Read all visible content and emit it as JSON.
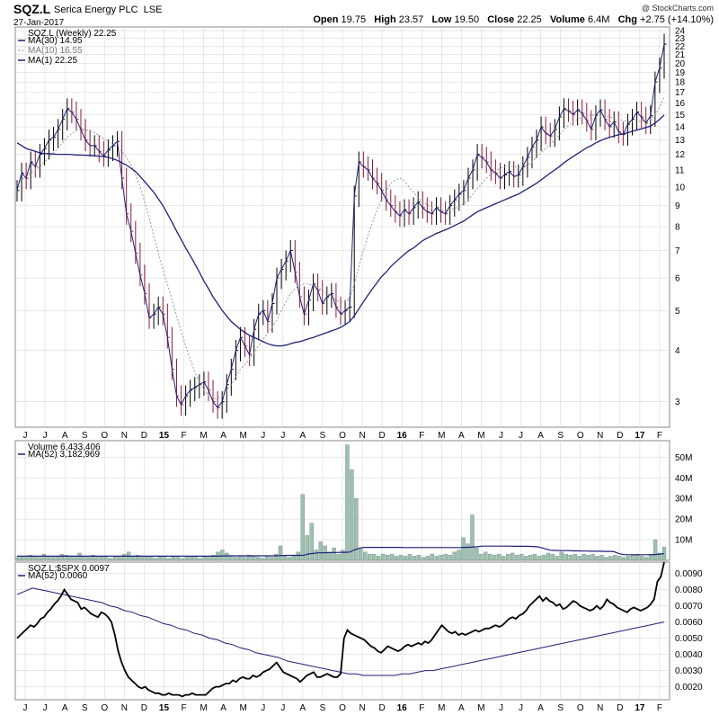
{
  "header": {
    "ticker": "SQZ.L",
    "company": "Serica Energy PLC",
    "exchange": "LSE",
    "date": "27-Jan-2017",
    "credit": "@ StockCharts.com",
    "open_label": "Open",
    "open": "19.75",
    "high_label": "High",
    "high": "23.57",
    "low_label": "Low",
    "low": "19.50",
    "close_label": "Close",
    "close": "22.25",
    "volume_label": "Volume",
    "volume": "6.4M",
    "chg_label": "Chg",
    "chg": "+2.75 (+14.10%)"
  },
  "colors": {
    "up": "#000000",
    "down": "#8b1a3a",
    "ma30": "#1f1f7a",
    "ma10": "#9a9a9a",
    "volume_bar": "#9fbfb0",
    "volume_bar_edge": "#6d8f80",
    "ratio": "#000000",
    "ratio_ma": "#1f1f7a",
    "grid": "#d9d9d9"
  },
  "chart_data": [
    {
      "type": "line",
      "panel": "price",
      "title": "SQZ.L (Weekly) 22.25",
      "yscale": "log",
      "ylim": [
        2.6,
        24.5
      ],
      "yticks": [
        3,
        4,
        5,
        6,
        7,
        8,
        9,
        10,
        11,
        12,
        13,
        14,
        15,
        16,
        17,
        18,
        19,
        20,
        21,
        22,
        23,
        24
      ],
      "xticks": [
        "J",
        "J",
        "A",
        "S",
        "O",
        "N",
        "D",
        "15",
        "F",
        "M",
        "A",
        "M",
        "J",
        "J",
        "A",
        "S",
        "O",
        "N",
        "D",
        "16",
        "F",
        "M",
        "A",
        "M",
        "J",
        "J",
        "A",
        "S",
        "O",
        "N",
        "D",
        "17",
        "F"
      ],
      "legend": [
        {
          "name": "SQZ.L (Weekly) 22.25"
        },
        {
          "name": "MA(30) 14.95"
        },
        {
          "name": "MA(10) 16.55"
        },
        {
          "name": "MA(1) 22.25"
        }
      ],
      "close": [
        9.8,
        10.8,
        10.5,
        11.5,
        11.2,
        12.0,
        12.4,
        13.0,
        13.2,
        13.8,
        14.6,
        15.5,
        15.2,
        14.6,
        13.8,
        13.0,
        12.6,
        12.6,
        12.2,
        11.9,
        12.3,
        12.6,
        12.9,
        10.5,
        8.6,
        7.8,
        6.9,
        6.1,
        5.5,
        4.8,
        4.9,
        5.1,
        4.9,
        4.3,
        3.6,
        3.1,
        2.95,
        3.1,
        3.2,
        3.25,
        3.3,
        3.35,
        3.2,
        3.0,
        2.9,
        3.0,
        3.3,
        3.6,
        4.0,
        4.3,
        4.1,
        3.9,
        4.5,
        4.9,
        5.0,
        4.7,
        5.2,
        6.0,
        6.3,
        6.6,
        7.0,
        6.2,
        5.4,
        4.9,
        5.3,
        5.8,
        5.6,
        5.2,
        5.4,
        5.5,
        5.1,
        4.9,
        5.0,
        5.1,
        9.5,
        11.5,
        11.2,
        11.0,
        10.5,
        10.2,
        9.8,
        9.3,
        9.0,
        8.7,
        8.5,
        8.8,
        8.6,
        8.9,
        9.2,
        8.9,
        8.7,
        8.6,
        8.9,
        8.7,
        8.6,
        9.0,
        9.3,
        9.6,
        9.8,
        10.5,
        11.0,
        12.0,
        11.8,
        11.5,
        11.0,
        10.8,
        10.5,
        10.7,
        10.9,
        10.6,
        10.7,
        11.2,
        11.8,
        12.5,
        13.0,
        14.0,
        13.5,
        13.3,
        13.8,
        14.8,
        15.5,
        15.3,
        15.0,
        15.4,
        15.1,
        14.5,
        13.8,
        14.9,
        15.4,
        14.6,
        14.0,
        14.4,
        13.6,
        13.4,
        14.2,
        14.6,
        15.2,
        14.8,
        14.3,
        14.9,
        18.0,
        19.5,
        22.25
      ],
      "series": [
        {
          "name": "MA(30) 14.95",
          "values": [
            12.8,
            12.6,
            12.4,
            12.3,
            12.2,
            12.1,
            12.05,
            12.05,
            12.02,
            12.0,
            12.0,
            12.0,
            11.98,
            11.96,
            11.95,
            11.94,
            11.93,
            11.9,
            11.88,
            11.85,
            11.8,
            11.7,
            11.6,
            11.45,
            11.3,
            11.1,
            10.9,
            10.6,
            10.3,
            10.0,
            9.7,
            9.35,
            9.0,
            8.6,
            8.2,
            7.8,
            7.45,
            7.1,
            6.8,
            6.5,
            6.2,
            5.9,
            5.65,
            5.4,
            5.2,
            5.0,
            4.85,
            4.7,
            4.6,
            4.5,
            4.42,
            4.35,
            4.3,
            4.25,
            4.2,
            4.15,
            4.12,
            4.1,
            4.1,
            4.12,
            4.15,
            4.18,
            4.2,
            4.23,
            4.27,
            4.3,
            4.34,
            4.38,
            4.42,
            4.46,
            4.5,
            4.55,
            4.62,
            4.7,
            4.85,
            5.05,
            5.25,
            5.45,
            5.65,
            5.85,
            6.05,
            6.2,
            6.4,
            6.55,
            6.7,
            6.85,
            7.0,
            7.1,
            7.25,
            7.4,
            7.5,
            7.6,
            7.7,
            7.78,
            7.86,
            7.95,
            8.05,
            8.15,
            8.25,
            8.4,
            8.55,
            8.7,
            8.8,
            8.9,
            9.0,
            9.1,
            9.2,
            9.3,
            9.4,
            9.5,
            9.6,
            9.75,
            9.9,
            10.05,
            10.2,
            10.4,
            10.6,
            10.8,
            11.0,
            11.2,
            11.45,
            11.65,
            11.85,
            12.05,
            12.25,
            12.45,
            12.6,
            12.8,
            12.95,
            13.1,
            13.2,
            13.3,
            13.4,
            13.45,
            13.55,
            13.65,
            13.75,
            13.85,
            13.95,
            14.05,
            14.3,
            14.6,
            14.95
          ]
        },
        {
          "name": "MA(10) 16.55",
          "values": [
            10.2,
            10.4,
            10.6,
            10.8,
            11.0,
            11.2,
            11.5,
            11.8,
            12.1,
            12.4,
            12.8,
            13.2,
            13.5,
            13.7,
            13.8,
            13.75,
            13.7,
            13.55,
            13.35,
            13.1,
            12.9,
            12.7,
            12.5,
            12.2,
            11.8,
            11.3,
            10.7,
            10.0,
            9.2,
            8.4,
            7.6,
            6.9,
            6.3,
            5.8,
            5.3,
            4.85,
            4.45,
            4.1,
            3.8,
            3.55,
            3.35,
            3.2,
            3.1,
            3.05,
            3.05,
            3.1,
            3.2,
            3.3,
            3.45,
            3.6,
            3.7,
            3.8,
            3.95,
            4.1,
            4.25,
            4.4,
            4.55,
            4.75,
            5.0,
            5.25,
            5.5,
            5.65,
            5.75,
            5.8,
            5.8,
            5.75,
            5.7,
            5.6,
            5.5,
            5.4,
            5.3,
            5.25,
            5.25,
            5.35,
            5.8,
            6.4,
            7.0,
            7.6,
            8.2,
            8.8,
            9.3,
            9.8,
            10.2,
            10.4,
            10.5,
            10.35,
            10.0,
            9.7,
            9.4,
            9.2,
            9.05,
            8.9,
            8.85,
            8.8,
            8.75,
            8.8,
            8.85,
            8.95,
            9.1,
            9.3,
            9.6,
            9.9,
            10.2,
            10.5,
            10.75,
            10.95,
            11.1,
            11.2,
            11.25,
            11.2,
            11.15,
            11.2,
            11.3,
            11.5,
            11.8,
            12.1,
            12.4,
            12.7,
            13.0,
            13.4,
            13.8,
            14.1,
            14.4,
            14.6,
            14.8,
            14.9,
            14.95,
            14.95,
            14.9,
            14.85,
            14.8,
            14.7,
            14.6,
            14.5,
            14.45,
            14.4,
            14.4,
            14.45,
            14.5,
            14.6,
            15.0,
            15.6,
            16.55
          ]
        }
      ]
    },
    {
      "type": "bar",
      "panel": "volume",
      "title": "Volume 6,433,406",
      "ylim": [
        0,
        58
      ],
      "yticks": [
        "10M",
        "20M",
        "30M",
        "40M",
        "50M"
      ],
      "ytick_values": [
        10,
        20,
        30,
        40,
        50
      ],
      "legend": [
        {
          "name": "Volume 6,433,406"
        },
        {
          "name": "MA(52) 3,182,969"
        }
      ],
      "values": [
        1.5,
        2,
        1.5,
        2.5,
        2,
        1.5,
        3,
        2,
        1.5,
        2,
        3,
        2.5,
        2,
        1.5,
        3.5,
        2,
        1.5,
        2.5,
        1.5,
        2,
        1.5,
        1,
        2,
        1.5,
        3,
        4,
        2,
        2.5,
        1.5,
        2,
        1.5,
        1,
        2,
        1.5,
        1,
        2,
        1.5,
        1,
        1.5,
        2,
        1.5,
        1,
        2,
        1.5,
        2.5,
        4,
        5,
        3.5,
        2,
        1.5,
        2,
        1.5,
        2.5,
        2,
        1.5,
        1,
        2,
        1.5,
        3,
        7,
        2,
        1.5,
        2,
        4,
        32,
        12,
        18,
        5,
        9,
        7,
        4,
        6,
        3,
        5,
        56,
        44,
        30,
        6,
        4,
        3,
        3,
        2,
        3,
        2.5,
        3,
        2,
        2.5,
        2,
        3,
        2,
        2.5,
        1.5,
        2,
        3,
        2,
        2.5,
        3,
        2.5,
        4,
        5,
        11,
        8,
        22,
        6,
        3,
        4,
        3,
        2.5,
        3,
        2,
        3,
        3.5,
        2.5,
        3,
        2,
        2.5,
        3,
        2,
        2.5,
        3.5,
        3,
        2,
        4,
        3,
        2.5,
        3,
        2,
        3,
        2.5,
        3,
        2,
        2.5,
        1.5,
        2,
        2.5,
        2,
        1.5,
        2,
        2.5,
        3,
        2,
        1.5,
        3,
        10,
        3.5,
        6.4
      ],
      "series": [
        {
          "name": "MA(52) 3,182,969",
          "values": [
            2.0,
            2.0,
            2.0,
            2.0,
            2.0,
            2.0,
            2.0,
            2.0,
            2.0,
            2.0,
            2.0,
            2.0,
            2.0,
            2.0,
            2.0,
            2.0,
            2.0,
            2.0,
            2.0,
            2.0,
            2.0,
            2.0,
            2.0,
            2.0,
            2.0,
            2.0,
            2.0,
            2.0,
            2.0,
            2.0,
            2.0,
            2.0,
            2.0,
            2.0,
            2.0,
            2.0,
            2.0,
            2.0,
            2.0,
            2.0,
            2.0,
            2.0,
            2.0,
            2.0,
            2.0,
            2.1,
            2.2,
            2.2,
            2.2,
            2.2,
            2.2,
            2.2,
            2.2,
            2.2,
            2.2,
            2.2,
            2.2,
            2.2,
            2.3,
            2.4,
            2.4,
            2.4,
            2.4,
            2.5,
            3.1,
            3.3,
            3.6,
            3.6,
            3.7,
            3.8,
            3.8,
            3.9,
            3.9,
            4.0,
            5.0,
            5.8,
            6.3,
            6.3,
            6.3,
            6.3,
            6.3,
            6.3,
            6.3,
            6.3,
            6.3,
            6.2,
            6.2,
            6.2,
            6.2,
            6.2,
            6.2,
            6.2,
            6.2,
            6.2,
            6.2,
            6.2,
            6.2,
            6.2,
            6.3,
            6.3,
            6.5,
            6.6,
            6.9,
            6.9,
            6.9,
            6.9,
            6.9,
            6.9,
            6.9,
            6.8,
            6.8,
            6.8,
            6.8,
            6.7,
            6.6,
            6.2,
            5.5,
            4.9,
            4.8,
            4.7,
            4.7,
            4.7,
            4.6,
            4.6,
            4.5,
            4.5,
            4.4,
            4.4,
            4.4,
            4.3,
            4.3,
            4.2,
            3.3,
            2.8,
            2.7,
            2.7,
            2.7,
            2.7,
            2.7,
            2.7,
            2.8,
            3.0,
            3.2
          ]
        }
      ]
    },
    {
      "type": "line",
      "panel": "ratio",
      "title": "SQZ.L:$SPX 0.0097",
      "ylim": [
        0.0012,
        0.0097
      ],
      "yticks": [
        "0.0020",
        "0.0030",
        "0.0040",
        "0.0050",
        "0.0060",
        "0.0070",
        "0.0080",
        "0.0090"
      ],
      "ytick_values": [
        0.002,
        0.003,
        0.004,
        0.005,
        0.006,
        0.007,
        0.008,
        0.009
      ],
      "legend": [
        {
          "name": "SQZ.L:$SPX 0.0097"
        },
        {
          "name": "MA(52) 0.0060"
        }
      ],
      "values": [
        0.005,
        0.0052,
        0.0054,
        0.0056,
        0.0058,
        0.0057,
        0.0059,
        0.0062,
        0.0063,
        0.0066,
        0.0068,
        0.0071,
        0.0073,
        0.0076,
        0.008,
        0.0077,
        0.0074,
        0.0073,
        0.0072,
        0.0068,
        0.0069,
        0.0067,
        0.0065,
        0.0064,
        0.0063,
        0.0066,
        0.0065,
        0.0063,
        0.006,
        0.0052,
        0.0042,
        0.0035,
        0.003,
        0.0026,
        0.0024,
        0.0022,
        0.002,
        0.0019,
        0.002,
        0.0018,
        0.0017,
        0.0016,
        0.0016,
        0.0015,
        0.0015,
        0.0016,
        0.0015,
        0.0015,
        0.0015,
        0.0014,
        0.0015,
        0.0015,
        0.0016,
        0.0015,
        0.0015,
        0.0015,
        0.0015,
        0.0017,
        0.0019,
        0.002,
        0.002,
        0.0021,
        0.0022,
        0.0022,
        0.0024,
        0.0023,
        0.0025,
        0.0026,
        0.0025,
        0.0025,
        0.0027,
        0.0026,
        0.0027,
        0.0029,
        0.003,
        0.0031,
        0.0033,
        0.0035,
        0.0032,
        0.0029,
        0.0028,
        0.0027,
        0.0026,
        0.0025,
        0.0023,
        0.0025,
        0.0027,
        0.0028,
        0.0029,
        0.0026,
        0.0026,
        0.0027,
        0.0028,
        0.0027,
        0.0026,
        0.0026,
        0.0028,
        0.005,
        0.0055,
        0.0053,
        0.0052,
        0.0051,
        0.005,
        0.0049,
        0.0047,
        0.0045,
        0.0044,
        0.0042,
        0.0041,
        0.0043,
        0.0045,
        0.0044,
        0.0043,
        0.0042,
        0.0043,
        0.0045,
        0.0046,
        0.0045,
        0.0046,
        0.0047,
        0.0046,
        0.0048,
        0.0047,
        0.0049,
        0.0052,
        0.0055,
        0.0058,
        0.0056,
        0.0054,
        0.0053,
        0.0054,
        0.0052,
        0.0053,
        0.0052,
        0.0053,
        0.0054,
        0.0055,
        0.0054,
        0.0055,
        0.0056,
        0.0056,
        0.0057,
        0.0058,
        0.0057,
        0.0058,
        0.006,
        0.0062,
        0.0063,
        0.0062,
        0.0064,
        0.0065,
        0.0067,
        0.007,
        0.0072,
        0.0074,
        0.0076,
        0.0073,
        0.0075,
        0.0073,
        0.0072,
        0.007,
        0.0071,
        0.0068,
        0.0069,
        0.0071,
        0.0073,
        0.0072,
        0.007,
        0.0069,
        0.0068,
        0.0067,
        0.0068,
        0.007,
        0.0068,
        0.007,
        0.0074,
        0.0072,
        0.0071,
        0.0069,
        0.0068,
        0.0067,
        0.0066,
        0.0068,
        0.0069,
        0.0068,
        0.0067,
        0.0068,
        0.0069,
        0.0071,
        0.0074,
        0.0085,
        0.0088,
        0.0097
      ],
      "series": [
        {
          "name": "MA(52) 0.0060",
          "values": [
            0.0077,
            0.0079,
            0.0081,
            0.008,
            0.0079,
            0.0078,
            0.0077,
            0.0076,
            0.0075,
            0.0074,
            0.0073,
            0.0072,
            0.007,
            0.0069,
            0.0067,
            0.0066,
            0.0064,
            0.0063,
            0.0061,
            0.0059,
            0.0058,
            0.0056,
            0.0055,
            0.0053,
            0.0052,
            0.005,
            0.0049,
            0.0047,
            0.0046,
            0.0044,
            0.0043,
            0.0041,
            0.004,
            0.0039,
            0.0038,
            0.0036,
            0.0035,
            0.0034,
            0.0033,
            0.0032,
            0.0031,
            0.003,
            0.0029,
            0.0028,
            0.0028,
            0.0027,
            0.0027,
            0.0027,
            0.0027,
            0.0027,
            0.0028,
            0.0028,
            0.0029,
            0.003,
            0.003,
            0.0031,
            0.0032,
            0.0033,
            0.0034,
            0.0035,
            0.0036,
            0.0037,
            0.0038,
            0.0039,
            0.004,
            0.0041,
            0.0042,
            0.0043,
            0.0044,
            0.0045,
            0.0046,
            0.0047,
            0.0048,
            0.0049,
            0.005,
            0.0051,
            0.0052,
            0.0053,
            0.0054,
            0.0055,
            0.0056,
            0.0057,
            0.0058,
            0.0059,
            0.006
          ]
        }
      ]
    }
  ],
  "volume_panel": {
    "title": "Volume 6,433,406",
    "ma_label": "MA(52) 3,182,969"
  },
  "ratio_panel": {
    "title": "SQZ.L:$SPX 0.0097",
    "ma_label": "MA(52) 0.0060"
  }
}
